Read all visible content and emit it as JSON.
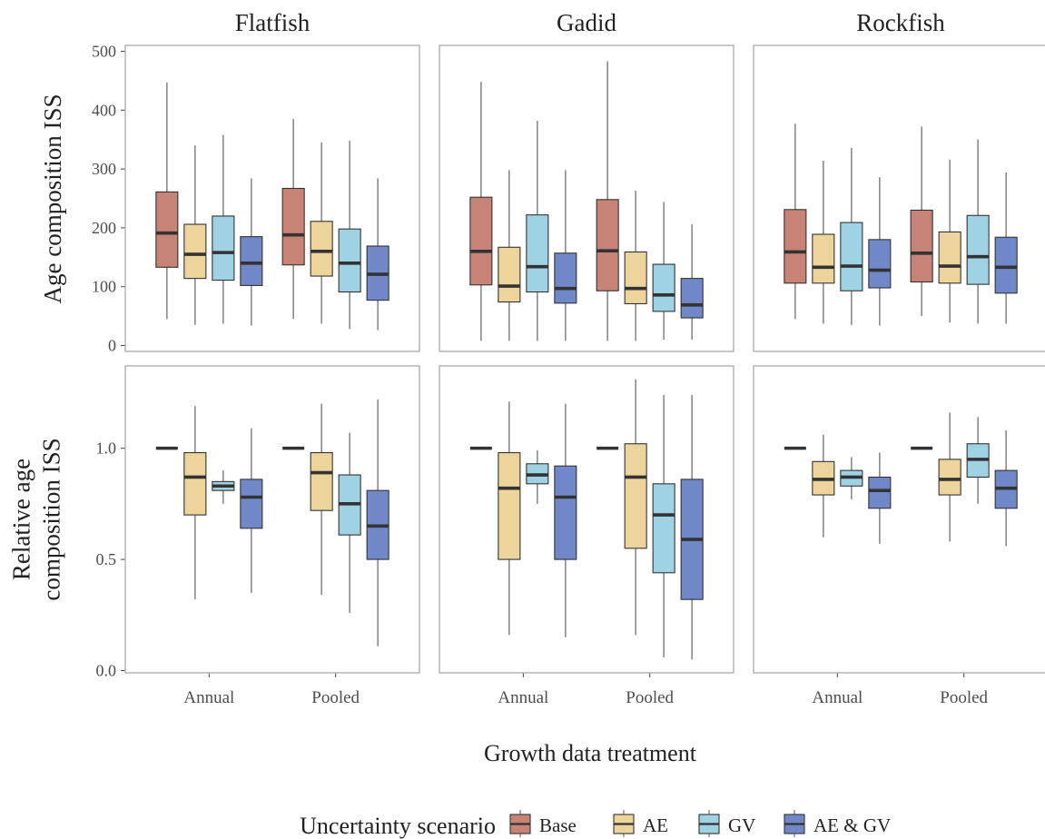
{
  "figure": {
    "x_axis_title": "Growth data treatment",
    "legend_title": "Uncertainty scenario"
  },
  "colors": {
    "Base": "#c68376",
    "AE": "#ecd49b",
    "GV": "#9fd3e4",
    "AE & GV": "#7088c7",
    "median": "#333333",
    "whisker": "#8a8a8a",
    "panel_border": "#aaaaaa",
    "text": "#222222",
    "tick_text": "#4d4d4d"
  },
  "chart_data": {
    "type": "boxplot",
    "facet_columns": [
      "Flatfish",
      "Gadid",
      "Rockfish"
    ],
    "rows": [
      {
        "ylabel": [
          "Age composition ISS"
        ],
        "ylim": [
          -10,
          510
        ],
        "yticks": [
          0,
          100,
          200,
          300,
          400,
          500
        ],
        "ytick_labels": [
          "0",
          "100",
          "200",
          "300",
          "400",
          "500"
        ]
      },
      {
        "ylabel": [
          "Relative age",
          "composition ISS"
        ],
        "ylim": [
          -0.01,
          1.37
        ],
        "yticks": [
          0.0,
          0.5,
          1.0
        ],
        "ytick_labels": [
          "0.0",
          "0.5",
          "1.0"
        ]
      }
    ],
    "categories": [
      "Annual",
      "Pooled"
    ],
    "legend": [
      "Base",
      "AE",
      "GV",
      "AE & GV"
    ],
    "panels": [
      {
        "row": 0,
        "col": 0,
        "groups": [
          [
            {
              "series": "Base",
              "low": 45,
              "q1": 133,
              "median": 191,
              "q3": 261,
              "high": 447
            },
            {
              "series": "AE",
              "low": 35,
              "q1": 114,
              "median": 155,
              "q3": 206,
              "high": 340
            },
            {
              "series": "GV",
              "low": 37,
              "q1": 111,
              "median": 158,
              "q3": 220,
              "high": 358
            },
            {
              "series": "AE & GV",
              "low": 34,
              "q1": 102,
              "median": 140,
              "q3": 185,
              "high": 284
            }
          ],
          [
            {
              "series": "Base",
              "low": 45,
              "q1": 137,
              "median": 188,
              "q3": 267,
              "high": 385
            },
            {
              "series": "AE",
              "low": 37,
              "q1": 118,
              "median": 160,
              "q3": 211,
              "high": 345
            },
            {
              "series": "GV",
              "low": 28,
              "q1": 91,
              "median": 140,
              "q3": 198,
              "high": 348
            },
            {
              "series": "AE & GV",
              "low": 26,
              "q1": 77,
              "median": 121,
              "q3": 169,
              "high": 284
            }
          ]
        ]
      },
      {
        "row": 0,
        "col": 1,
        "groups": [
          [
            {
              "series": "Base",
              "low": 8,
              "q1": 103,
              "median": 160,
              "q3": 252,
              "high": 448
            },
            {
              "series": "AE",
              "low": 8,
              "q1": 74,
              "median": 101,
              "q3": 167,
              "high": 298
            },
            {
              "series": "GV",
              "low": 8,
              "q1": 91,
              "median": 134,
              "q3": 222,
              "high": 382
            },
            {
              "series": "AE & GV",
              "low": 8,
              "q1": 72,
              "median": 97,
              "q3": 157,
              "high": 298
            }
          ],
          [
            {
              "series": "Base",
              "low": 8,
              "q1": 93,
              "median": 161,
              "q3": 248,
              "high": 483
            },
            {
              "series": "AE",
              "low": 8,
              "q1": 71,
              "median": 97,
              "q3": 159,
              "high": 263
            },
            {
              "series": "GV",
              "low": 10,
              "q1": 58,
              "median": 86,
              "q3": 138,
              "high": 244
            },
            {
              "series": "AE & GV",
              "low": 10,
              "q1": 47,
              "median": 69,
              "q3": 114,
              "high": 206
            }
          ]
        ]
      },
      {
        "row": 0,
        "col": 2,
        "groups": [
          [
            {
              "series": "Base",
              "low": 45,
              "q1": 106,
              "median": 159,
              "q3": 231,
              "high": 377
            },
            {
              "series": "AE",
              "low": 37,
              "q1": 106,
              "median": 133,
              "q3": 189,
              "high": 314
            },
            {
              "series": "GV",
              "low": 35,
              "q1": 93,
              "median": 135,
              "q3": 209,
              "high": 336
            },
            {
              "series": "AE & GV",
              "low": 34,
              "q1": 98,
              "median": 128,
              "q3": 180,
              "high": 286
            }
          ],
          [
            {
              "series": "Base",
              "low": 50,
              "q1": 108,
              "median": 157,
              "q3": 230,
              "high": 372
            },
            {
              "series": "AE",
              "low": 39,
              "q1": 106,
              "median": 135,
              "q3": 193,
              "high": 316
            },
            {
              "series": "GV",
              "low": 37,
              "q1": 104,
              "median": 151,
              "q3": 221,
              "high": 350
            },
            {
              "series": "AE & GV",
              "low": 37,
              "q1": 89,
              "median": 133,
              "q3": 184,
              "high": 294
            }
          ]
        ]
      },
      {
        "row": 1,
        "col": 0,
        "groups": [
          [
            {
              "series": "Base",
              "low": 1.0,
              "q1": 1.0,
              "median": 1.0,
              "q3": 1.0,
              "high": 1.0
            },
            {
              "series": "AE",
              "low": 0.32,
              "q1": 0.7,
              "median": 0.87,
              "q3": 0.98,
              "high": 1.19
            },
            {
              "series": "GV",
              "low": 0.75,
              "q1": 0.81,
              "median": 0.83,
              "q3": 0.85,
              "high": 0.9
            },
            {
              "series": "AE & GV",
              "low": 0.35,
              "q1": 0.64,
              "median": 0.78,
              "q3": 0.86,
              "high": 1.09
            }
          ],
          [
            {
              "series": "Base",
              "low": 1.0,
              "q1": 1.0,
              "median": 1.0,
              "q3": 1.0,
              "high": 1.0
            },
            {
              "series": "AE",
              "low": 0.34,
              "q1": 0.72,
              "median": 0.89,
              "q3": 0.98,
              "high": 1.2
            },
            {
              "series": "GV",
              "low": 0.26,
              "q1": 0.61,
              "median": 0.75,
              "q3": 0.88,
              "high": 1.07
            },
            {
              "series": "AE & GV",
              "low": 0.11,
              "q1": 0.5,
              "median": 0.65,
              "q3": 0.81,
              "high": 1.22
            }
          ]
        ]
      },
      {
        "row": 1,
        "col": 1,
        "groups": [
          [
            {
              "series": "Base",
              "low": 1.0,
              "q1": 1.0,
              "median": 1.0,
              "q3": 1.0,
              "high": 1.0
            },
            {
              "series": "AE",
              "low": 0.16,
              "q1": 0.5,
              "median": 0.82,
              "q3": 0.98,
              "high": 1.21
            },
            {
              "series": "GV",
              "low": 0.75,
              "q1": 0.84,
              "median": 0.88,
              "q3": 0.93,
              "high": 0.99
            },
            {
              "series": "AE & GV",
              "low": 0.15,
              "q1": 0.5,
              "median": 0.78,
              "q3": 0.92,
              "high": 1.2
            }
          ],
          [
            {
              "series": "Base",
              "low": 1.0,
              "q1": 1.0,
              "median": 1.0,
              "q3": 1.0,
              "high": 1.0
            },
            {
              "series": "AE",
              "low": 0.16,
              "q1": 0.55,
              "median": 0.87,
              "q3": 1.02,
              "high": 1.31
            },
            {
              "series": "GV",
              "low": 0.06,
              "q1": 0.44,
              "median": 0.7,
              "q3": 0.84,
              "high": 1.24
            },
            {
              "series": "AE & GV",
              "low": 0.05,
              "q1": 0.32,
              "median": 0.59,
              "q3": 0.86,
              "high": 1.24
            }
          ]
        ]
      },
      {
        "row": 1,
        "col": 2,
        "groups": [
          [
            {
              "series": "Base",
              "low": 1.0,
              "q1": 1.0,
              "median": 1.0,
              "q3": 1.0,
              "high": 1.0
            },
            {
              "series": "AE",
              "low": 0.6,
              "q1": 0.79,
              "median": 0.86,
              "q3": 0.94,
              "high": 1.06
            },
            {
              "series": "GV",
              "low": 0.77,
              "q1": 0.83,
              "median": 0.87,
              "q3": 0.9,
              "high": 0.96
            },
            {
              "series": "AE & GV",
              "low": 0.57,
              "q1": 0.73,
              "median": 0.81,
              "q3": 0.87,
              "high": 0.98
            }
          ],
          [
            {
              "series": "Base",
              "low": 1.0,
              "q1": 1.0,
              "median": 1.0,
              "q3": 1.0,
              "high": 1.0
            },
            {
              "series": "AE",
              "low": 0.58,
              "q1": 0.79,
              "median": 0.86,
              "q3": 0.95,
              "high": 1.16
            },
            {
              "series": "GV",
              "low": 0.75,
              "q1": 0.87,
              "median": 0.95,
              "q3": 1.02,
              "high": 1.14
            },
            {
              "series": "AE & GV",
              "low": 0.56,
              "q1": 0.73,
              "median": 0.82,
              "q3": 0.9,
              "high": 1.08
            }
          ]
        ]
      }
    ]
  }
}
